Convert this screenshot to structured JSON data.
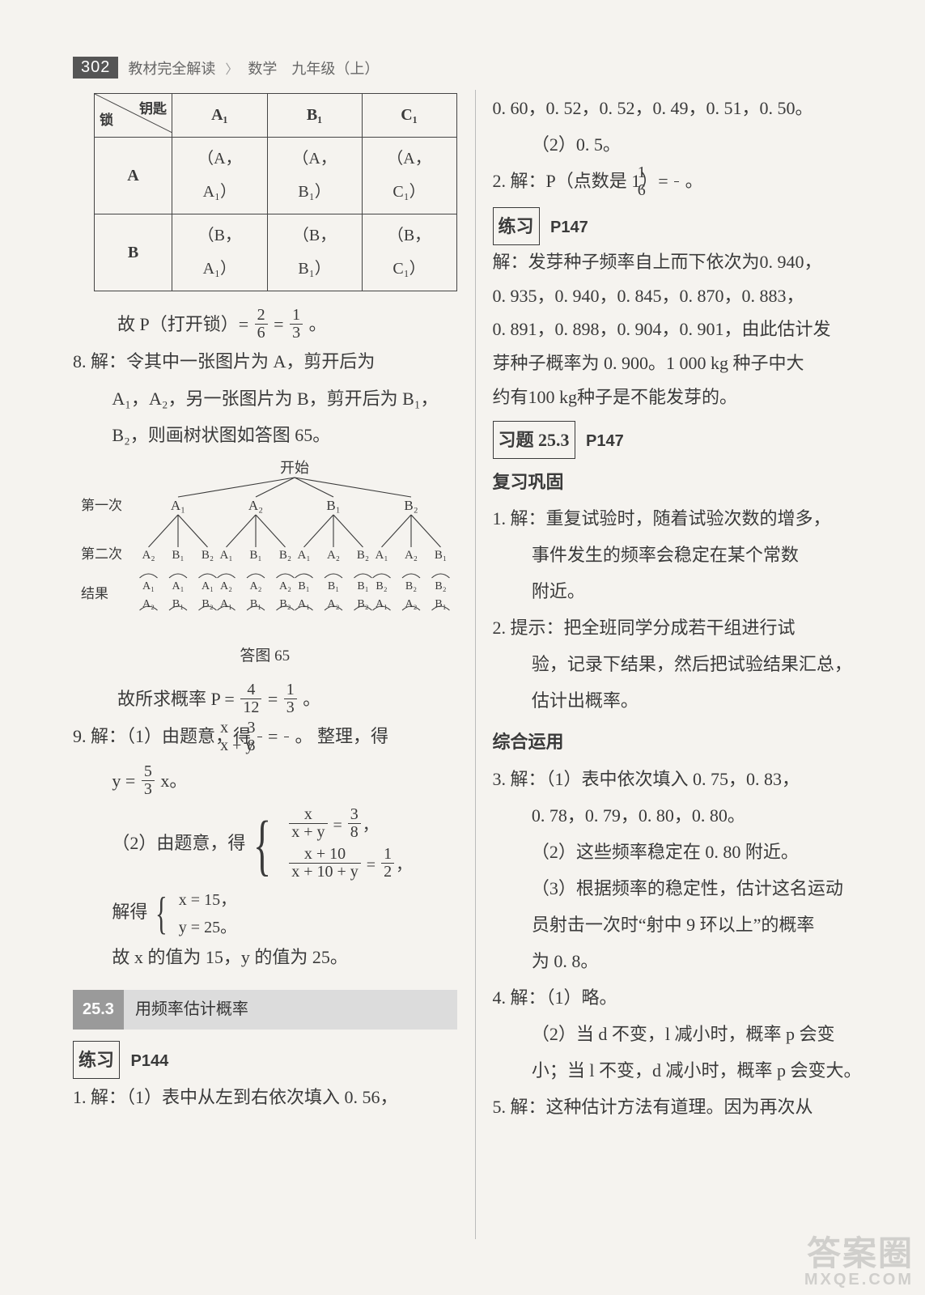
{
  "page_number": "302",
  "header": {
    "book_title": "教材完全解读",
    "subject": "数学　九年级（上）"
  },
  "colors": {
    "page_bg": "#f5f3ef",
    "text": "#3a3a3a",
    "header_box_bg": "#555555",
    "header_box_fg": "#ffffff",
    "header_text": "#666666",
    "section_num_bg": "#9a9a9a",
    "section_title_bg": "#dcdcdc",
    "divider": "#bbbbbb",
    "table_border": "#444444"
  },
  "fonts": {
    "body_family": "SimSun / STSong serif",
    "body_size_pt": 16,
    "header_size_pt": 14,
    "section_size_pt": 15
  },
  "left": {
    "table": {
      "diag_top": "钥匙",
      "diag_bot": "锁",
      "col_headers": [
        "A₁",
        "B₁",
        "C₁"
      ],
      "row_headers": [
        "A",
        "B"
      ],
      "rows": [
        [
          "（A，A₁）",
          "（A，B₁）",
          "（A，C₁）"
        ],
        [
          "（B，A₁）",
          "（B，B₁）",
          "（B，C₁）"
        ]
      ]
    },
    "line_p_open": "故 P（打开锁）=",
    "frac_p_open_a": {
      "num": "2",
      "den": "6"
    },
    "eq_sign_a": "=",
    "frac_p_open_b": {
      "num": "1",
      "den": "3"
    },
    "period_a": "。",
    "q8_a": "8. 解：令其中一张图片为 A，剪开后为",
    "q8_b": "A₁，A₂，另一张图片为 B，剪开后为 B₁，",
    "q8_c": "B₂，则画树状图如答图 65。",
    "tree": {
      "root": "开始",
      "row_labels": [
        "第一次",
        "第二次",
        "结果"
      ],
      "level1": [
        "A₁",
        "A₂",
        "B₁",
        "B₂"
      ],
      "level2_groups": [
        [
          "A₂",
          "B₁",
          "B₂"
        ],
        [
          "A₁",
          "B₁",
          "B₂"
        ],
        [
          "A₁",
          "A₂",
          "B₂"
        ],
        [
          "A₁",
          "A₂",
          "B₁"
        ]
      ],
      "results_top": [
        "A₁",
        "A₁",
        "A₁",
        "A₂",
        "A₂",
        "A₂",
        "B₁",
        "B₁",
        "B₁",
        "B₂",
        "B₂",
        "B₂"
      ],
      "results_bottom": [
        "A₂",
        "B₁",
        "B₂",
        "A₁",
        "B₁",
        "B₂",
        "A₁",
        "A₂",
        "B₂",
        "A₁",
        "A₂",
        "B₁"
      ],
      "caption": "答图 65",
      "line_color": "#3a3a3a",
      "line_width": 1.1
    },
    "p_result_lead": "故所求概率 P =",
    "frac_p_res_a": {
      "num": "4",
      "den": "12"
    },
    "frac_p_res_b": {
      "num": "1",
      "den": "3"
    },
    "q9_a": "9. 解：（1）由题意，得",
    "frac_q9_1": {
      "num": "x",
      "den": "x + y"
    },
    "q9_eq": "=",
    "frac_q9_2": {
      "num": "3",
      "den": "8"
    },
    "q9_a_tail": "。 整理，得",
    "q9_b_lead": "y =",
    "frac_q9_b": {
      "num": "5",
      "den": "3"
    },
    "q9_b_tail": "x。",
    "q9_c_lead": "（2）由题意，得",
    "sys_r1_lhs": {
      "num": "x",
      "den": "x + y"
    },
    "sys_r1_rhs": {
      "num": "3",
      "den": "8"
    },
    "sys_r2_lhs": {
      "num": "x + 10",
      "den": "x + 10 + y"
    },
    "sys_r2_rhs": {
      "num": "1",
      "den": "2"
    },
    "sys_comma1": "，",
    "sys_comma2": "，",
    "solve_lead": "解得",
    "solve_r1": "x = 15，",
    "solve_r2": "y = 25。",
    "q9_final": "故 x 的值为 15，y 的值为 25。",
    "section": {
      "num": "25.3",
      "title": "用频率估计概率"
    },
    "ex1_box": "练习",
    "ex1_page": "P144",
    "q1_a": "1. 解：（1）表中从左到右依次填入 0. 56，"
  },
  "right": {
    "cont_a": "0. 60，0. 52，0. 52，0. 49，0. 51，0. 50。",
    "cont_b": "（2）0. 5。",
    "q2_lead": "2. 解：P（点数是 1）=",
    "frac_q2": {
      "num": "1",
      "den": "6"
    },
    "q2_tail": "。",
    "ex2_box": "练习",
    "ex2_page": "P147",
    "p147_a": "解：发芽种子频率自上而下依次为0. 940，",
    "p147_b": "0. 935，0. 940，0. 845，0. 870，0. 883，",
    "p147_c": "0. 891，0. 898，0. 904，0. 901，由此估计发",
    "p147_d": "芽种子概率为 0. 900。1 000 kg 种子中大",
    "p147_e": "约有100 kg种子是不能发芽的。",
    "ex3_box": "习题 25.3",
    "ex3_page": "P147",
    "fuxi": "复习巩固",
    "fx_q1_a": "1. 解：重复试验时，随着试验次数的增多，",
    "fx_q1_b": "事件发生的频率会稳定在某个常数",
    "fx_q1_c": "附近。",
    "fx_q2_a": "2. 提示：把全班同学分成若干组进行试",
    "fx_q2_b": "验，记录下结果，然后把试验结果汇总，",
    "fx_q2_c": "估计出概率。",
    "zhyy": "综合运用",
    "zy_q3_a": "3. 解：（1）表中依次填入 0. 75，0. 83，",
    "zy_q3_b": "0. 78，0. 79，0. 80，0. 80。",
    "zy_q3_c": "（2）这些频率稳定在 0. 80 附近。",
    "zy_q3_d": "（3）根据频率的稳定性，估计这名运动",
    "zy_q3_e": "员射击一次时“射中 9 环以上”的概率",
    "zy_q3_f": "为 0. 8。",
    "zy_q4_a": "4. 解：（1）略。",
    "zy_q4_b": "（2）当 d 不变，l 减小时，概率 p 会变",
    "zy_q4_c": "小；当 l 不变，d 减小时，概率 p 会变大。",
    "zy_q5_a": "5. 解：这种估计方法有道理。因为再次从"
  },
  "watermark": {
    "main": "答案圈",
    "sub": "MXQE.COM"
  }
}
